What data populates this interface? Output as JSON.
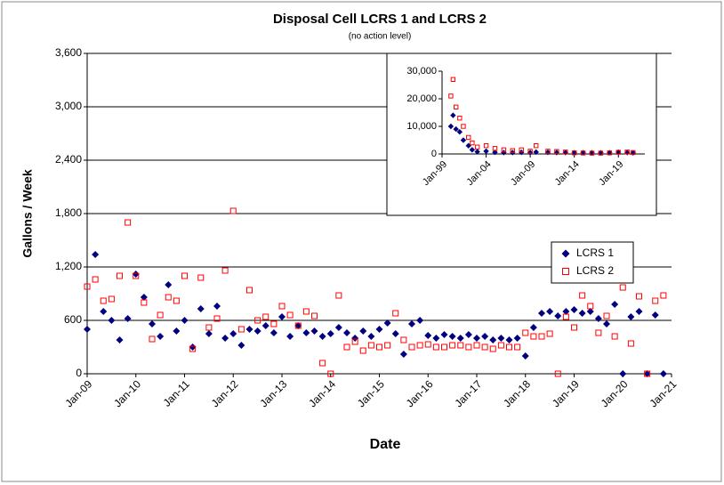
{
  "chart_data": [
    {
      "type": "scatter",
      "title": "Disposal Cell LCRS 1 and LCRS 2",
      "subtitle": "(no action level)",
      "x_label": "Date",
      "y_label": "Gallons / Week",
      "x": [
        "2009-01",
        "2009-03",
        "2009-05",
        "2009-07",
        "2009-09",
        "2009-11",
        "2010-01",
        "2010-03",
        "2010-05",
        "2010-07",
        "2010-09",
        "2010-11",
        "2011-01",
        "2011-03",
        "2011-05",
        "2011-07",
        "2011-09",
        "2011-11",
        "2012-01",
        "2012-03",
        "2012-05",
        "2012-07",
        "2012-09",
        "2012-11",
        "2013-01",
        "2013-03",
        "2013-05",
        "2013-07",
        "2013-09",
        "2013-11",
        "2014-01",
        "2014-03",
        "2014-05",
        "2014-07",
        "2014-09",
        "2014-11",
        "2015-01",
        "2015-03",
        "2015-05",
        "2015-07",
        "2015-09",
        "2015-11",
        "2016-01",
        "2016-03",
        "2016-05",
        "2016-07",
        "2016-09",
        "2016-11",
        "2017-01",
        "2017-03",
        "2017-05",
        "2017-07",
        "2017-09",
        "2017-11",
        "2018-01",
        "2018-03",
        "2018-05",
        "2018-07",
        "2018-09",
        "2018-11",
        "2019-01",
        "2019-03",
        "2019-05",
        "2019-07",
        "2019-09",
        "2019-11",
        "2020-01",
        "2020-03",
        "2020-05",
        "2020-07",
        "2020-09",
        "2020-11"
      ],
      "series": [
        {
          "name": "LCRS 1",
          "color": "#000080",
          "marker": "diamond",
          "values": [
            500,
            1340,
            700,
            600,
            380,
            620,
            1120,
            860,
            560,
            420,
            1000,
            480,
            600,
            300,
            730,
            450,
            760,
            400,
            450,
            320,
            500,
            480,
            540,
            460,
            640,
            420,
            540,
            460,
            480,
            420,
            450,
            520,
            460,
            400,
            480,
            420,
            500,
            570,
            450,
            220,
            560,
            600,
            430,
            400,
            440,
            420,
            400,
            440,
            400,
            420,
            380,
            400,
            380,
            400,
            200,
            520,
            680,
            700,
            650,
            700,
            720,
            680,
            700,
            620,
            560,
            780,
            0,
            640,
            700,
            0,
            660,
            0
          ]
        },
        {
          "name": "LCRS 2",
          "color": "#ff0000",
          "marker": "square",
          "values": [
            980,
            1060,
            820,
            840,
            1100,
            1700,
            1100,
            800,
            390,
            660,
            860,
            820,
            1100,
            280,
            1080,
            520,
            620,
            1160,
            1830,
            500,
            940,
            600,
            640,
            560,
            760,
            660,
            540,
            700,
            650,
            120,
            0,
            880,
            300,
            360,
            260,
            320,
            300,
            320,
            680,
            380,
            300,
            320,
            330,
            300,
            300,
            320,
            320,
            300,
            320,
            300,
            280,
            320,
            300,
            300,
            460,
            420,
            420,
            450,
            0,
            640,
            520,
            880,
            760,
            460,
            650,
            420,
            970,
            340,
            870,
            0,
            820,
            880
          ]
        }
      ],
      "xlim": [
        "2009-01",
        "2021-01"
      ],
      "xticks": [
        {
          "value": "2009-01",
          "label": "Jan-09"
        },
        {
          "value": "2010-01",
          "label": "Jan-10"
        },
        {
          "value": "2011-01",
          "label": "Jan-11"
        },
        {
          "value": "2012-01",
          "label": "Jan-12"
        },
        {
          "value": "2013-01",
          "label": "Jan-13"
        },
        {
          "value": "2014-01",
          "label": "Jan-14"
        },
        {
          "value": "2015-01",
          "label": "Jan-15"
        },
        {
          "value": "2016-01",
          "label": "Jan-16"
        },
        {
          "value": "2017-01",
          "label": "Jan-17"
        },
        {
          "value": "2018-01",
          "label": "Jan-18"
        },
        {
          "value": "2019-01",
          "label": "Jan-19"
        },
        {
          "value": "2020-01",
          "label": "Jan-20"
        },
        {
          "value": "2021-01",
          "label": "Jan-21"
        }
      ],
      "ylim": [
        0,
        3600
      ],
      "yticks": [
        0,
        600,
        {
          "value": 1200,
          "label": "1,200"
        },
        {
          "value": 1800,
          "label": "1,800"
        },
        {
          "value": 2400,
          "label": "2,400"
        },
        {
          "value": 3000,
          "label": "3,000"
        },
        {
          "value": 3600,
          "label": "3,600"
        }
      ],
      "grid": true,
      "legend": "right"
    },
    {
      "type": "scatter",
      "x": [
        "2000-01",
        "2000-04",
        "2000-08",
        "2001-01",
        "2001-06",
        "2002-01",
        "2002-06",
        "2003-01",
        "2004-01",
        "2005-01",
        "2006-01",
        "2007-01",
        "2008-01",
        "2009-01",
        "2009-09",
        "2011-01",
        "2012-01",
        "2013-01",
        "2014-01",
        "2015-01",
        "2016-01",
        "2017-01",
        "2018-01",
        "2019-01",
        "2020-01",
        "2020-09"
      ],
      "series": [
        {
          "color": "#000080",
          "marker": "diamond",
          "values": [
            10000,
            14000,
            9000,
            8000,
            5000,
            3000,
            1500,
            800,
            1000,
            600,
            500,
            500,
            600,
            500,
            700,
            600,
            500,
            500,
            450,
            450,
            400,
            400,
            450,
            650,
            500,
            400
          ]
        },
        {
          "color": "#ff0000",
          "marker": "square",
          "values": [
            21000,
            27000,
            17000,
            13000,
            10000,
            6000,
            4000,
            2500,
            3000,
            2000,
            1500,
            1200,
            1500,
            1000,
            3000,
            1000,
            900,
            700,
            400,
            350,
            300,
            300,
            400,
            600,
            700,
            500
          ]
        }
      ],
      "xlim": [
        "1999-01",
        "2022-01"
      ],
      "xticks": [
        {
          "value": "1999-01",
          "label": "Jan-99"
        },
        {
          "value": "2004-01",
          "label": "Jan-04"
        },
        {
          "value": "2009-01",
          "label": "Jan-09"
        },
        {
          "value": "2014-01",
          "label": "Jan-14"
        },
        {
          "value": "2019-01",
          "label": "Jan-19"
        }
      ],
      "ylim": [
        0,
        30000
      ],
      "yticks": [
        0,
        {
          "value": 10000,
          "label": "10,000"
        },
        {
          "value": 20000,
          "label": "20,000"
        },
        {
          "value": 30000,
          "label": "30,000"
        }
      ],
      "grid": false
    }
  ]
}
